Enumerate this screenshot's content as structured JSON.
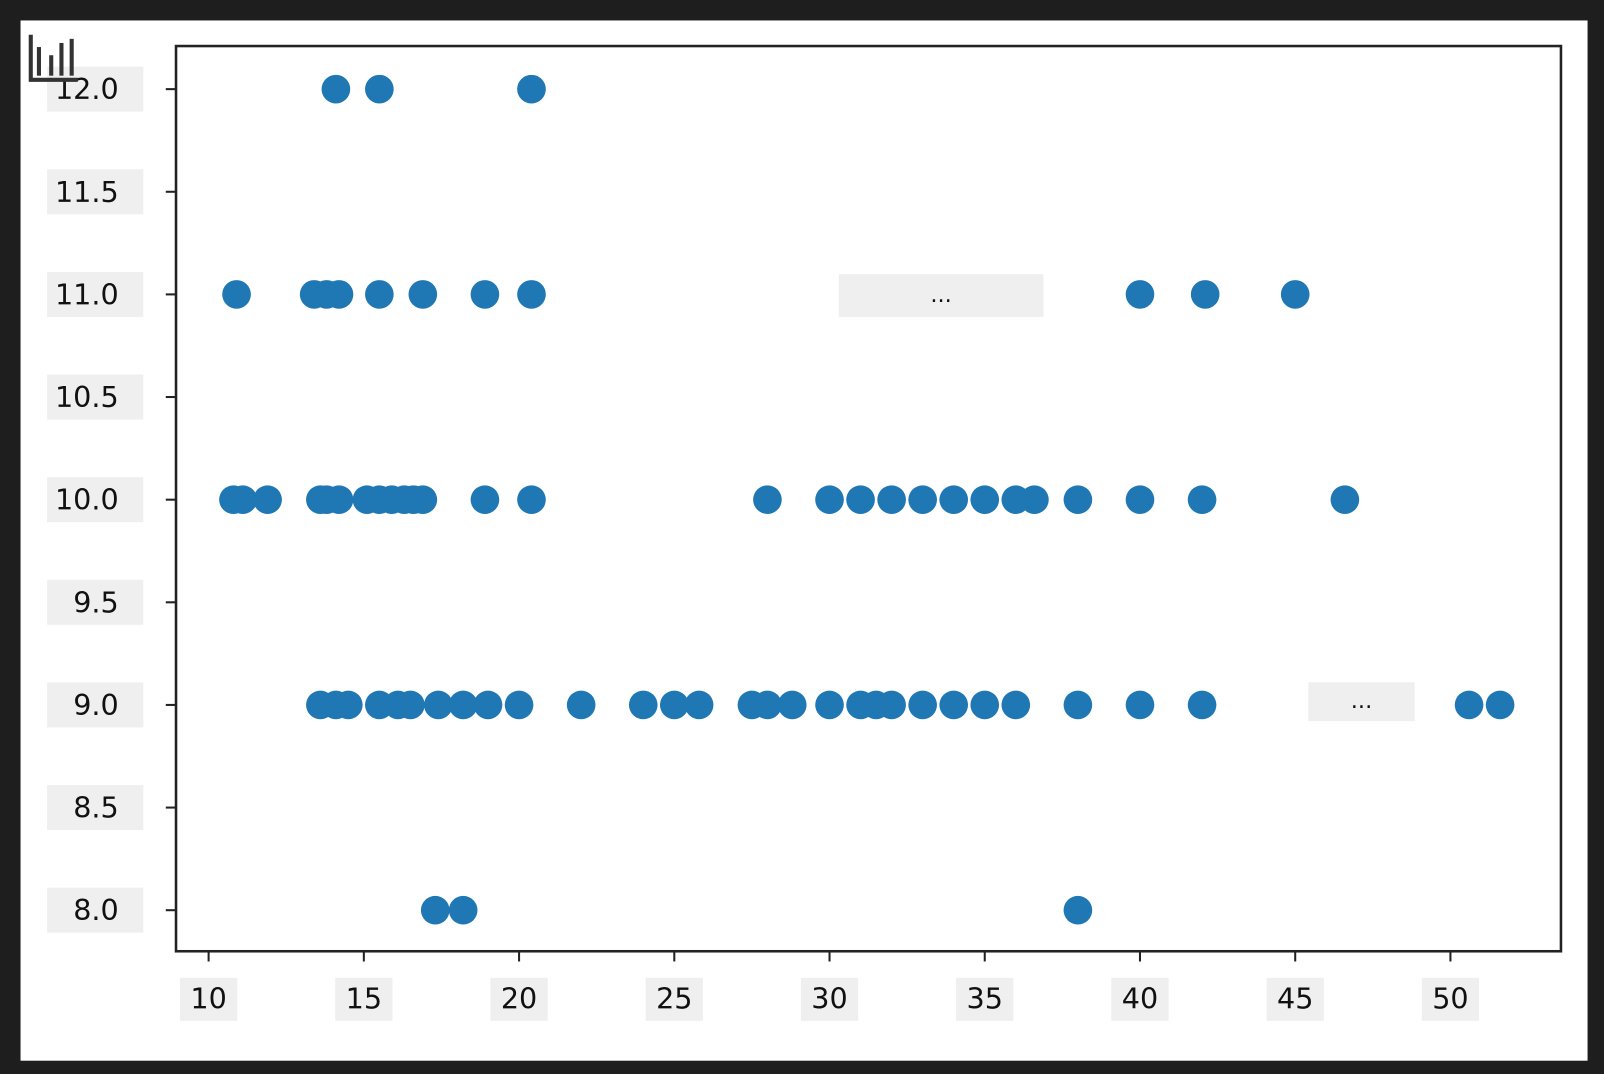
{
  "chart_data": {
    "type": "scatter",
    "series": [
      {
        "color": "#1f77b4",
        "x": [
          14.1,
          15.5,
          20.4,
          10.9,
          13.4,
          13.8,
          14.2,
          15.5,
          16.9,
          18.9,
          20.4,
          40.0,
          42.1,
          45.0,
          10.8,
          11.1,
          11.9,
          13.6,
          13.8,
          14.2,
          15.1,
          15.5,
          15.9,
          16.3,
          16.6,
          16.9,
          18.9,
          20.4,
          28.0,
          30.0,
          31.0,
          32.0,
          33.0,
          34.0,
          35.0,
          36.0,
          36.6,
          38.0,
          40.0,
          42.0,
          46.6,
          13.6,
          14.1,
          14.5,
          15.5,
          16.1,
          16.5,
          17.4,
          18.2,
          19.0,
          20.0,
          22.0,
          24.0,
          25.0,
          25.8,
          27.5,
          28.0,
          28.8,
          30.0,
          31.0,
          31.5,
          32.0,
          33.0,
          34.0,
          35.0,
          36.0,
          38.0,
          40.0,
          42.0,
          50.6,
          51.6,
          17.3,
          18.2,
          38.0
        ],
        "values": [
          12,
          12,
          12,
          11,
          11,
          11,
          11,
          11,
          11,
          11,
          11,
          11,
          11,
          11,
          10,
          10,
          10,
          10,
          10,
          10,
          10,
          10,
          10,
          10,
          10,
          10,
          10,
          10,
          10,
          10,
          10,
          10,
          10,
          10,
          10,
          10,
          10,
          10,
          10,
          10,
          10,
          9,
          9,
          9,
          9,
          9,
          9,
          9,
          9,
          9,
          9,
          9,
          9,
          9,
          9,
          9,
          9,
          9,
          9,
          9,
          9,
          9,
          9,
          9,
          9,
          9,
          9,
          9,
          9,
          9,
          9,
          8,
          8,
          8
        ]
      }
    ],
    "xlim": [
      8.95,
      53.56
    ],
    "ylim": [
      7.8,
      12.21
    ],
    "xticks": [
      10,
      15,
      20,
      25,
      30,
      35,
      40,
      45,
      50
    ],
    "yticks": [
      {
        "value": 8,
        "label": "8.0"
      },
      8.5,
      {
        "value": 9,
        "label": "9.0"
      },
      9.5,
      {
        "value": 10,
        "label": "10.0"
      },
      10.5,
      {
        "value": 11,
        "label": "11.0"
      },
      11.5,
      {
        "value": 12,
        "label": "12.0"
      }
    ],
    "annotations": [
      "...",
      "..."
    ]
  }
}
